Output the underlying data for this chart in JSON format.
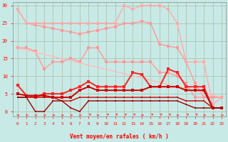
{
  "xlabel": "Vent moyen/en rafales ( km/h )",
  "xlim": [
    -0.5,
    23.5
  ],
  "ylim": [
    -1.5,
    31
  ],
  "yticks": [
    0,
    5,
    10,
    15,
    20,
    25,
    30
  ],
  "xticks": [
    0,
    1,
    2,
    3,
    4,
    5,
    6,
    7,
    8,
    9,
    10,
    11,
    12,
    13,
    14,
    15,
    16,
    17,
    18,
    19,
    20,
    21,
    22,
    23
  ],
  "bg_color": "#c8eae6",
  "series": [
    {
      "x": [
        0,
        1,
        2,
        3,
        4,
        5,
        6,
        7,
        8,
        9,
        10,
        11,
        12,
        13,
        14,
        15,
        16,
        17,
        18,
        19,
        20,
        21,
        22,
        23
      ],
      "y": [
        29,
        25,
        24.5,
        24,
        23.5,
        23,
        22.5,
        22,
        22.5,
        23,
        23.5,
        24,
        25,
        25,
        25.5,
        25,
        19,
        18.5,
        18,
        14,
        8,
        4,
        4,
        4
      ],
      "color": "#ff9999",
      "lw": 1.0,
      "marker": "s",
      "ms": 2.5
    },
    {
      "x": [
        0,
        1,
        2,
        3,
        4,
        5,
        6,
        7,
        8,
        9,
        10,
        11,
        12,
        13,
        14,
        15,
        16,
        17,
        18,
        19,
        20,
        21,
        22,
        23
      ],
      "y": [
        29,
        25,
        25,
        25,
        25,
        25,
        25,
        25,
        25,
        25,
        25,
        25,
        30,
        29,
        30,
        30,
        30,
        29,
        25,
        14,
        14,
        14,
        2,
        4
      ],
      "color": "#ffaaaa",
      "lw": 1.0,
      "marker": "s",
      "ms": 2.5
    },
    {
      "x": [
        0,
        1,
        2,
        3,
        4,
        5,
        6,
        7,
        8,
        9,
        10,
        11,
        12,
        13,
        14,
        15,
        16,
        17,
        18,
        19,
        20,
        21,
        22,
        23
      ],
      "y": [
        18,
        18,
        17,
        12,
        14,
        14,
        15,
        14,
        18,
        18,
        14,
        14,
        14,
        14,
        14,
        14,
        11,
        11,
        10,
        8,
        4,
        4,
        4,
        4
      ],
      "color": "#ff9999",
      "lw": 1.0,
      "marker": "s",
      "ms": 2.5
    },
    {
      "x": [
        0,
        23
      ],
      "y": [
        18,
        4
      ],
      "color": "#ffbbbb",
      "lw": 1.0,
      "marker": null,
      "ms": 0
    },
    {
      "x": [
        0,
        1,
        2,
        3,
        4,
        5,
        6,
        7,
        8,
        9,
        10,
        11,
        12,
        13,
        14,
        15,
        16,
        17,
        18,
        19,
        20,
        21,
        22,
        23
      ],
      "y": [
        7.5,
        4.5,
        4,
        5,
        5,
        5,
        6,
        7,
        8.5,
        7,
        7,
        7,
        7,
        11,
        10.5,
        7,
        7,
        12,
        11,
        7,
        7,
        7,
        1,
        1
      ],
      "color": "#ff2222",
      "lw": 1.4,
      "marker": "s",
      "ms": 2.5
    },
    {
      "x": [
        0,
        1,
        2,
        3,
        4,
        5,
        6,
        7,
        8,
        9,
        10,
        11,
        12,
        13,
        14,
        15,
        16,
        17,
        18,
        19,
        20,
        21,
        22,
        23
      ],
      "y": [
        5,
        4.5,
        4.5,
        4.5,
        4,
        4,
        4,
        6,
        7,
        6,
        6,
        6,
        6,
        6,
        6,
        7,
        7,
        7,
        7,
        6,
        6,
        6,
        1,
        1
      ],
      "color": "#cc0000",
      "lw": 1.4,
      "marker": "s",
      "ms": 2.5
    },
    {
      "x": [
        0,
        1,
        2,
        3,
        4,
        5,
        6,
        7,
        8,
        9,
        10,
        11,
        12,
        13,
        14,
        15,
        16,
        17,
        18,
        19,
        20,
        21,
        22,
        23
      ],
      "y": [
        4,
        4,
        4,
        4,
        4,
        3,
        3,
        4,
        4,
        4,
        4,
        4,
        4,
        4,
        4,
        4,
        4,
        4,
        4,
        3,
        3,
        3,
        1,
        1
      ],
      "color": "#cc0000",
      "lw": 1.0,
      "marker": "s",
      "ms": 2.0
    },
    {
      "x": [
        0,
        1,
        2,
        3,
        4,
        5,
        6,
        7,
        8,
        9,
        10,
        11,
        12,
        13,
        14,
        15,
        16,
        17,
        18,
        19,
        20,
        21,
        22,
        23
      ],
      "y": [
        4,
        4,
        0,
        0,
        3,
        3,
        1,
        0,
        3,
        3,
        3,
        3,
        3,
        3,
        3,
        3,
        3,
        3,
        3,
        2,
        1,
        1,
        1,
        1
      ],
      "color": "#990000",
      "lw": 1.0,
      "marker": "s",
      "ms": 2.0
    }
  ],
  "arrow_directions": [
    0,
    0,
    0,
    0,
    0,
    0,
    0,
    0,
    1,
    0,
    1,
    1,
    1,
    1,
    0,
    1,
    1,
    1,
    0,
    1,
    1,
    0,
    0,
    0
  ],
  "arrow_color": "#ff4444",
  "grid_color": "#aabbaa",
  "tick_color": "#ff0000",
  "axis_color": "#888888"
}
